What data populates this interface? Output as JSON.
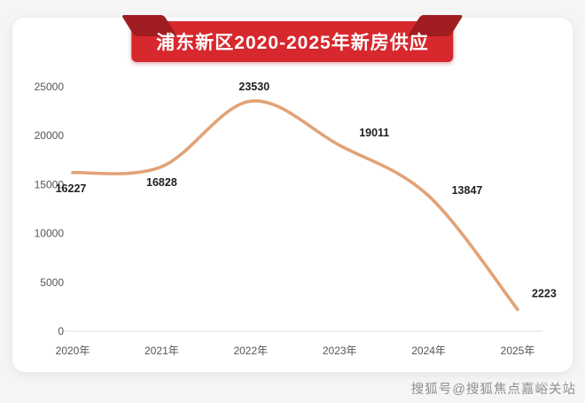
{
  "colors": {
    "bg": "#f5f5f6",
    "card": "#ffffff",
    "ribbon-red": "#d7282d",
    "ribbon-dark": "#9f1d20",
    "line": "#e2a377",
    "tick": "#555555",
    "label": "#1f1f1f",
    "muted": "#8f8f8f",
    "axis": "#dedede"
  },
  "ribbon": {
    "title": "浦东新区2020-2025年新房供应"
  },
  "watermark": {
    "text": "搜狐号@搜狐焦点嘉峪关站"
  },
  "chart_data": {
    "type": "line",
    "title": "浦东新区2020-2025年新房供应",
    "categories": [
      "2020年",
      "2021年",
      "2022年",
      "2023年",
      "2024年",
      "2025年"
    ],
    "values": [
      16227,
      16828,
      23530,
      19011,
      13847,
      2223
    ],
    "series": [
      {
        "name": "新房供应",
        "values": [
          16227,
          16828,
          23530,
          19011,
          13847,
          2223
        ]
      }
    ],
    "xlabel": "",
    "ylabel": "",
    "ylim": [
      0,
      25000
    ],
    "yticks": [
      0,
      5000,
      10000,
      15000,
      20000,
      25000
    ],
    "grid": false,
    "legend": false,
    "line_color": "#e2a377",
    "smooth": true
  }
}
